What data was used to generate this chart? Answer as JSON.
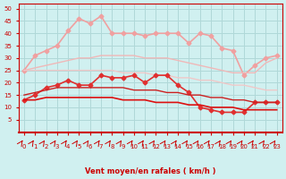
{
  "x": [
    0,
    1,
    2,
    3,
    4,
    5,
    6,
    7,
    8,
    9,
    10,
    11,
    12,
    13,
    14,
    15,
    16,
    17,
    18,
    19,
    20,
    21,
    22,
    23
  ],
  "series": [
    {
      "label": "line1_light_pink_top",
      "color": "#f0a0a0",
      "linewidth": 1.2,
      "marker": "D",
      "markersize": 2.5,
      "y": [
        25,
        31,
        33,
        35,
        41,
        46,
        44,
        47,
        40,
        40,
        40,
        39,
        40,
        40,
        40,
        36,
        40,
        39,
        34,
        33,
        23,
        27,
        30,
        31
      ]
    },
    {
      "label": "line2_light_pink_mid",
      "color": "#f0b8b8",
      "linewidth": 1.0,
      "marker": null,
      "markersize": 0,
      "y": [
        25,
        26,
        27,
        28,
        29,
        30,
        30,
        31,
        31,
        31,
        31,
        30,
        30,
        30,
        29,
        28,
        27,
        26,
        25,
        24,
        24,
        24,
        28,
        30
      ]
    },
    {
      "label": "line3_light_pink_low",
      "color": "#f0c8c8",
      "linewidth": 1.0,
      "marker": null,
      "markersize": 0,
      "y": [
        25,
        25,
        25,
        25,
        25,
        25,
        25,
        25,
        25,
        24,
        24,
        24,
        23,
        23,
        22,
        22,
        21,
        21,
        20,
        19,
        19,
        18,
        17,
        17
      ]
    },
    {
      "label": "line4_red_with_markers",
      "color": "#e03030",
      "linewidth": 1.2,
      "marker": "D",
      "markersize": 2.5,
      "y": [
        13,
        15,
        18,
        19,
        21,
        19,
        19,
        23,
        22,
        22,
        23,
        20,
        23,
        23,
        19,
        16,
        10,
        9,
        8,
        8,
        8,
        12,
        12,
        12
      ]
    },
    {
      "label": "line5_red_flat",
      "color": "#cc2020",
      "linewidth": 1.0,
      "marker": null,
      "markersize": 0,
      "y": [
        15,
        16,
        17,
        18,
        18,
        18,
        18,
        18,
        18,
        18,
        17,
        17,
        17,
        16,
        16,
        15,
        15,
        14,
        14,
        13,
        13,
        12,
        12,
        12
      ]
    },
    {
      "label": "line6_red_declining",
      "color": "#dd1010",
      "linewidth": 1.2,
      "marker": null,
      "markersize": 0,
      "y": [
        13,
        13,
        14,
        14,
        14,
        14,
        14,
        14,
        14,
        13,
        13,
        13,
        12,
        12,
        12,
        11,
        11,
        10,
        10,
        10,
        9,
        9,
        9,
        9
      ]
    }
  ],
  "xlabel": "Vent moyen/en rafales ( km/h )",
  "xlabel_color": "#cc0000",
  "ylabel": "",
  "title": "",
  "xlim": [
    -0.5,
    23.5
  ],
  "ylim": [
    0,
    52
  ],
  "yticks": [
    5,
    10,
    15,
    20,
    25,
    30,
    35,
    40,
    45,
    50
  ],
  "xticks": [
    0,
    1,
    2,
    3,
    4,
    5,
    6,
    7,
    8,
    9,
    10,
    11,
    12,
    13,
    14,
    15,
    16,
    17,
    18,
    19,
    20,
    21,
    22,
    23
  ],
  "bg_color": "#d0f0f0",
  "grid_color": "#b0d8d8",
  "tick_color": "#cc0000",
  "arrow_color": "#cc0000"
}
